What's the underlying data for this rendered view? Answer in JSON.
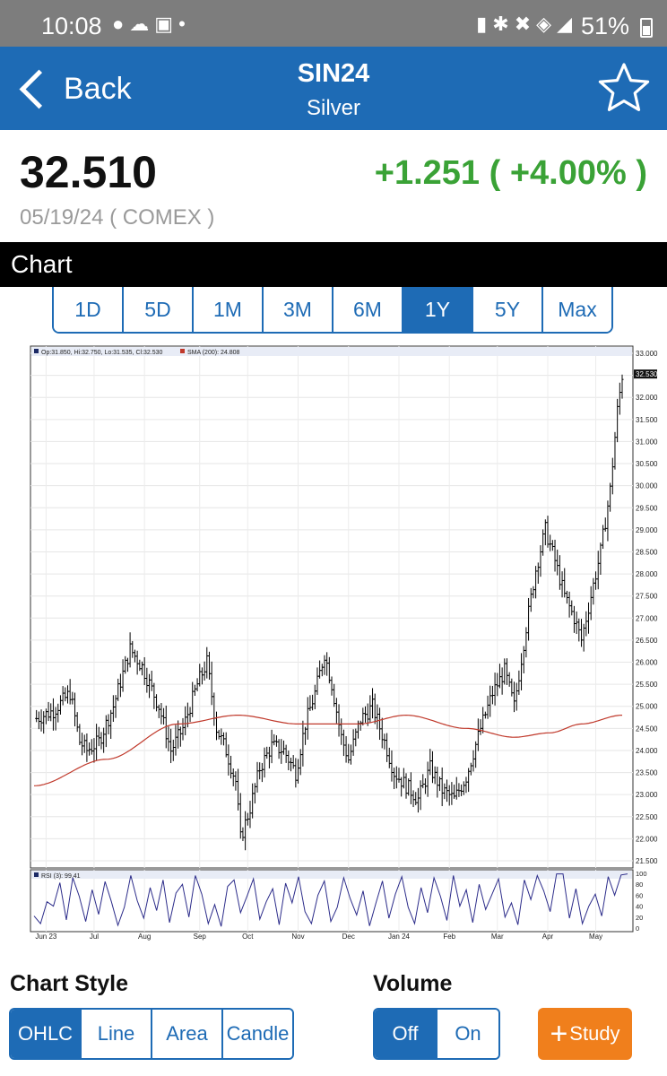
{
  "status_bar": {
    "time": "10:08",
    "battery": "51%",
    "icons": [
      "chat-icon",
      "cloud-icon",
      "image-icon",
      "dot-icon",
      "battery-saver-icon",
      "bluetooth-icon",
      "mute-icon",
      "wifi-icon",
      "signal-icon",
      "battery-icon"
    ]
  },
  "nav": {
    "back_label": "Back",
    "title": "SIN24",
    "subtitle": "Silver"
  },
  "quote": {
    "price": "32.510",
    "change": "+1.251 ( +4.00% )",
    "date_exchange": "05/19/24 ( COMEX )",
    "change_color": "#3aa236"
  },
  "chart_header": "Chart",
  "ranges": {
    "items": [
      "1D",
      "5D",
      "1M",
      "3M",
      "6M",
      "1Y",
      "5Y",
      "Max"
    ],
    "selected": "1Y"
  },
  "chart_data": {
    "type": "ohlc",
    "price_legend": "Op:31.850, Hi:32.750, Lo:31.535, Cl:32.530",
    "sma_legend": "SMA (200): 24.808",
    "last_price_label": "32.530",
    "y_ticks": [
      "33.000",
      "32.500",
      "32.000",
      "31.500",
      "31.000",
      "30.500",
      "30.000",
      "29.500",
      "29.000",
      "28.500",
      "28.000",
      "27.500",
      "27.000",
      "26.500",
      "26.000",
      "25.500",
      "25.000",
      "24.500",
      "24.000",
      "23.500",
      "23.000",
      "22.500",
      "22.000",
      "21.500"
    ],
    "ylim": [
      21.5,
      33.0
    ],
    "x_labels": [
      "Jun 23",
      "Jul",
      "Aug",
      "Sep",
      "Oct",
      "Nov",
      "Dec",
      "Jan 24",
      "Feb",
      "Mar",
      "Apr",
      "May"
    ],
    "grid": true,
    "price_trend": [
      [
        0,
        24.7
      ],
      [
        8,
        24.9
      ],
      [
        15,
        25.3
      ],
      [
        19,
        24.2
      ],
      [
        22,
        24.0
      ],
      [
        27,
        24.2
      ],
      [
        33,
        25.0
      ],
      [
        40,
        26.3
      ],
      [
        45,
        25.9
      ],
      [
        52,
        25.0
      ],
      [
        57,
        24.0
      ],
      [
        62,
        24.5
      ],
      [
        68,
        25.5
      ],
      [
        72,
        26.0
      ],
      [
        76,
        24.5
      ],
      [
        80,
        24.0
      ],
      [
        84,
        23.3
      ],
      [
        86,
        22.0
      ],
      [
        90,
        22.7
      ],
      [
        94,
        23.6
      ],
      [
        99,
        24.1
      ],
      [
        104,
        24.0
      ],
      [
        109,
        23.5
      ],
      [
        113,
        24.6
      ],
      [
        117,
        25.3
      ],
      [
        121,
        26.2
      ],
      [
        124,
        25.5
      ],
      [
        128,
        24.3
      ],
      [
        131,
        23.8
      ],
      [
        136,
        24.7
      ],
      [
        141,
        25.0
      ],
      [
        146,
        24.2
      ],
      [
        150,
        23.5
      ],
      [
        155,
        23.2
      ],
      [
        160,
        22.9
      ],
      [
        165,
        23.6
      ],
      [
        170,
        23.1
      ],
      [
        175,
        22.9
      ],
      [
        180,
        23.4
      ],
      [
        186,
        24.5
      ],
      [
        191,
        25.3
      ],
      [
        196,
        25.8
      ],
      [
        200,
        25.0
      ],
      [
        205,
        26.8
      ],
      [
        209,
        28.1
      ],
      [
        213,
        29.0
      ],
      [
        217,
        28.3
      ],
      [
        221,
        27.5
      ],
      [
        225,
        27.0
      ],
      [
        228,
        26.5
      ],
      [
        232,
        27.5
      ],
      [
        236,
        28.5
      ],
      [
        240,
        29.9
      ],
      [
        243,
        31.7
      ],
      [
        245,
        32.5
      ]
    ],
    "sma": [
      [
        0,
        23.2
      ],
      [
        30,
        23.8
      ],
      [
        60,
        24.6
      ],
      [
        85,
        24.8
      ],
      [
        110,
        24.6
      ],
      [
        135,
        24.6
      ],
      [
        155,
        24.8
      ],
      [
        180,
        24.5
      ],
      [
        200,
        24.3
      ],
      [
        215,
        24.4
      ],
      [
        228,
        24.6
      ],
      [
        245,
        24.8
      ]
    ],
    "rsi": {
      "legend": "RSI (3): 99.41",
      "y_ticks": [
        "100",
        "80",
        "60",
        "40",
        "20",
        "0"
      ],
      "values": [
        22,
        8,
        48,
        40,
        83,
        15,
        92,
        58,
        12,
        70,
        25,
        85,
        48,
        5,
        38,
        96,
        50,
        18,
        74,
        32,
        88,
        10,
        64,
        80,
        20,
        96,
        62,
        8,
        43,
        3,
        76,
        88,
        28,
        58,
        90,
        16,
        48,
        72,
        6,
        82,
        46,
        94,
        30,
        8,
        60,
        86,
        12,
        38,
        92,
        54,
        24,
        68,
        4,
        46,
        86,
        18,
        62,
        94,
        38,
        8,
        74,
        28,
        92,
        58,
        14,
        96,
        40,
        70,
        10,
        80,
        34,
        62,
        90,
        20,
        46,
        6,
        88,
        52,
        96,
        68,
        30,
        99,
        99,
        18,
        72,
        8,
        40,
        62,
        22,
        94,
        60,
        97,
        99
      ]
    }
  },
  "chart_style": {
    "label": "Chart Style",
    "options": [
      "OHLC",
      "Line",
      "Area",
      "Candle"
    ],
    "selected": "OHLC"
  },
  "volume": {
    "label": "Volume",
    "options": [
      "Off",
      "On"
    ],
    "selected": "Off"
  },
  "study_button": {
    "label": "Study"
  }
}
